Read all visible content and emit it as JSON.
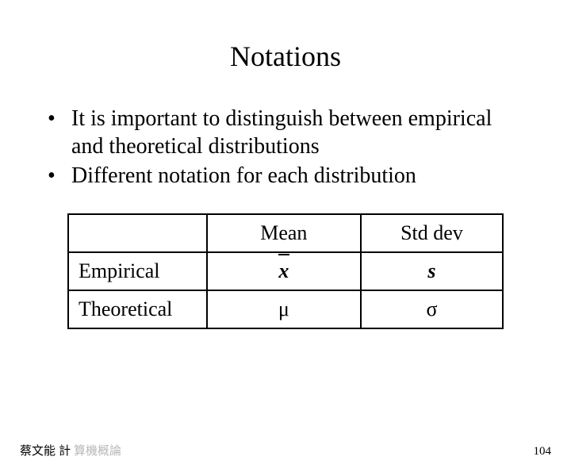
{
  "title": "Notations",
  "bullets": [
    "It is important to distinguish between empirical and theoretical distributions",
    "Different notation for each distribution"
  ],
  "table": {
    "headers": [
      "",
      "Mean",
      "Std dev"
    ],
    "rows": [
      {
        "label": "Empirical",
        "mean_type": "xbar",
        "stddev": "s",
        "stddev_class": "italic-bold"
      },
      {
        "label": "Theoretical",
        "mean": "μ",
        "mean_class": "greek",
        "stddev": "σ",
        "stddev_class": "greek"
      }
    ]
  },
  "footer": {
    "left_prefix": "蔡文能 計",
    "left_ghost": "算機概論",
    "page_number": "104"
  },
  "styling": {
    "background_color": "#ffffff",
    "text_color": "#000000",
    "border_color": "#000000",
    "title_fontsize": 36,
    "bullet_fontsize": 28,
    "table_fontsize": 26,
    "footer_fontsize": 15
  }
}
